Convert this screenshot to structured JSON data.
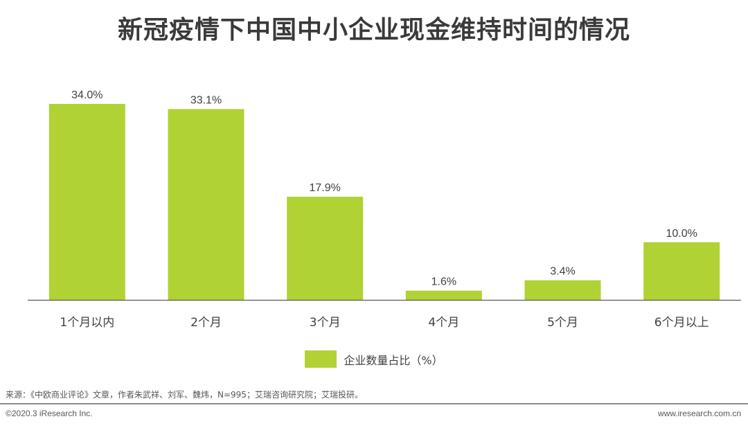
{
  "title": "新冠疫情下中国中小企业现金维持时间的情况",
  "chart_data": {
    "type": "bar",
    "categories": [
      "1个月以内",
      "2个月",
      "3个月",
      "4个月",
      "5个月",
      "6个月以上"
    ],
    "series": [
      {
        "name": "企业数量占比（%）",
        "values": [
          34.0,
          33.1,
          17.9,
          1.6,
          3.4,
          10.0
        ],
        "labels": [
          "34.0%",
          "33.1%",
          "17.9%",
          "1.6%",
          "3.4%",
          "10.0%"
        ]
      }
    ],
    "ylim": [
      0,
      34
    ],
    "grid": false,
    "legend_position": "bottom",
    "bar_color": "#b1d234"
  },
  "source": "来源：《中欧商业评论》文章，作者朱武祥、刘军、魏炜，N=995；艾瑞咨询研究院；艾瑞投研。",
  "footer": {
    "copyright": "©2020.3 iResearch Inc.",
    "website": "www.iresearch.com.cn"
  }
}
